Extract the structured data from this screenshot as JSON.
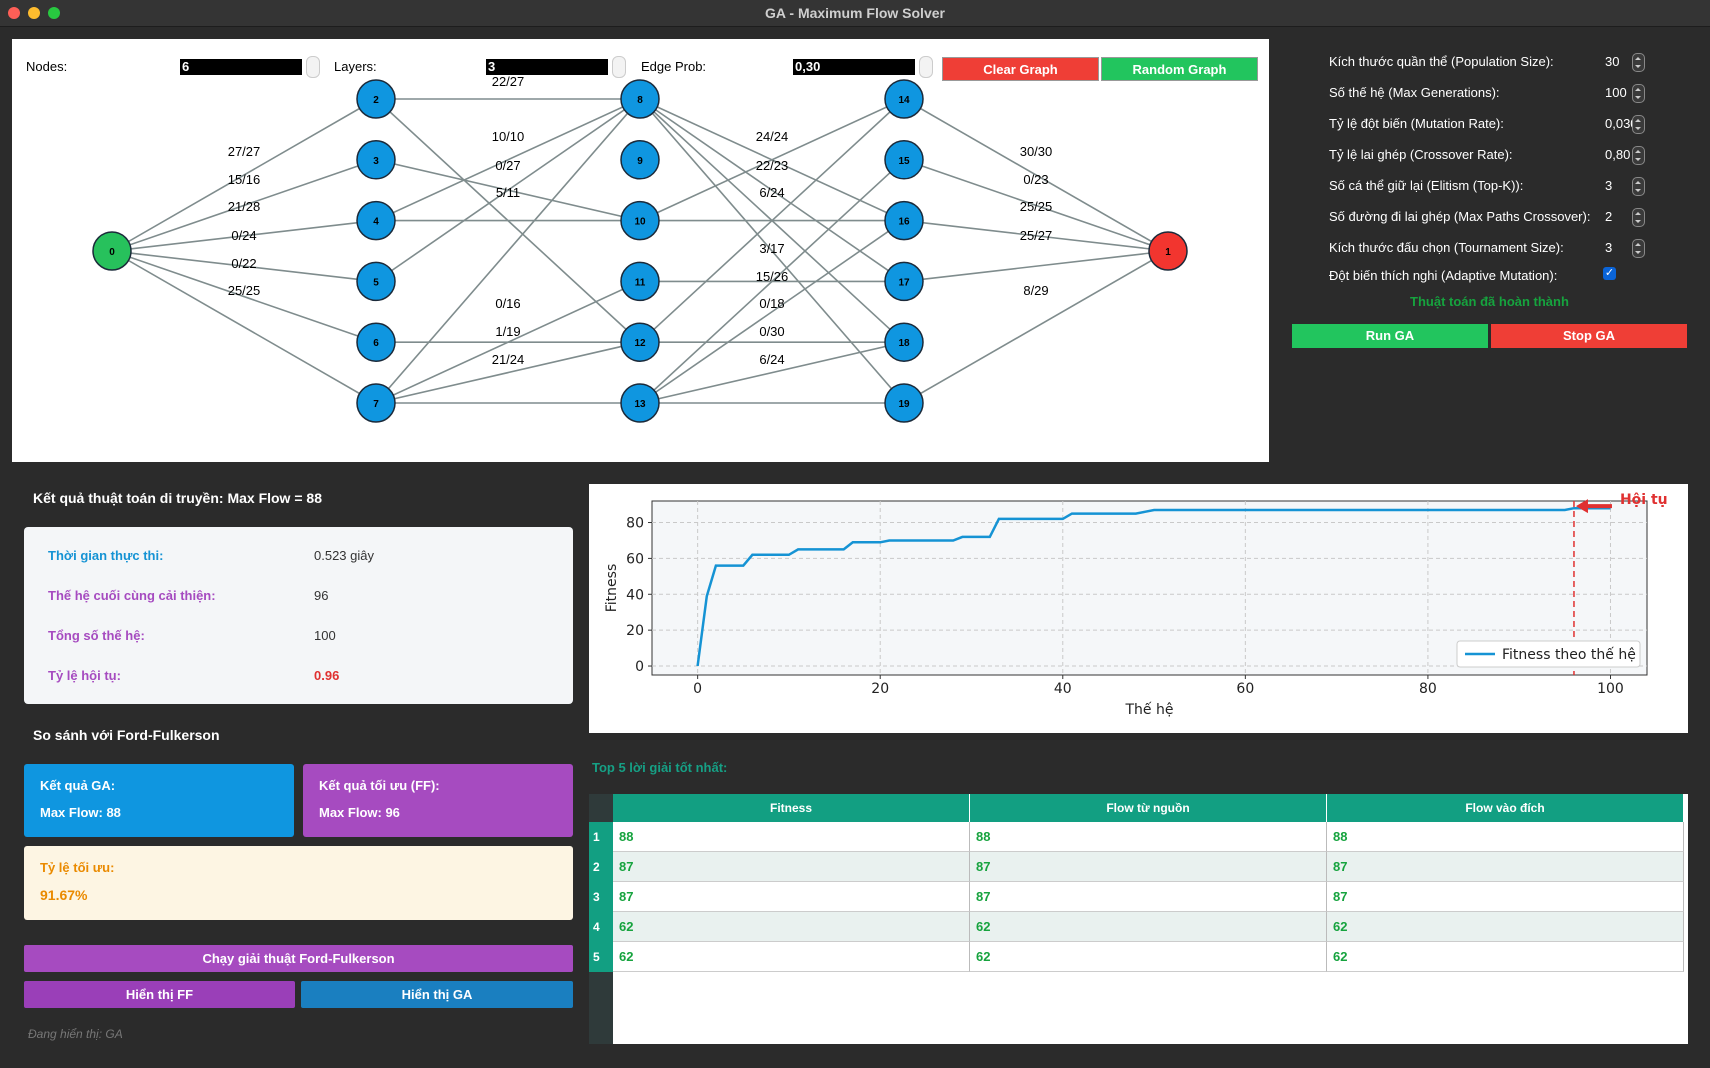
{
  "window": {
    "title": "GA - Maximum Flow Solver"
  },
  "graph_controls": {
    "nodes_label": "Nodes:",
    "nodes_value": "6",
    "layers_label": "Layers:",
    "layers_value": "3",
    "edge_prob_label": "Edge Prob:",
    "edge_prob_value": "0,30",
    "clear_label": "Clear Graph",
    "random_label": "Random Graph"
  },
  "graph": {
    "node_colors": {
      "source": "#27c15c",
      "sink": "#f2352f",
      "inner": "#0f96e0"
    },
    "nodes": [
      {
        "id": "0",
        "col": 0,
        "row": 2.5,
        "kind": "source"
      },
      {
        "id": "1",
        "col": 4,
        "row": 2.5,
        "kind": "sink"
      },
      {
        "id": "2",
        "col": 1,
        "row": 0
      },
      {
        "id": "3",
        "col": 1,
        "row": 1
      },
      {
        "id": "4",
        "col": 1,
        "row": 2
      },
      {
        "id": "5",
        "col": 1,
        "row": 3
      },
      {
        "id": "6",
        "col": 1,
        "row": 4
      },
      {
        "id": "7",
        "col": 1,
        "row": 5
      },
      {
        "id": "8",
        "col": 2,
        "row": 0
      },
      {
        "id": "9",
        "col": 2,
        "row": 1
      },
      {
        "id": "10",
        "col": 2,
        "row": 2
      },
      {
        "id": "11",
        "col": 2,
        "row": 3
      },
      {
        "id": "12",
        "col": 2,
        "row": 4
      },
      {
        "id": "13",
        "col": 2,
        "row": 5
      },
      {
        "id": "14",
        "col": 3,
        "row": 0
      },
      {
        "id": "15",
        "col": 3,
        "row": 1
      },
      {
        "id": "16",
        "col": 3,
        "row": 2
      },
      {
        "id": "17",
        "col": 3,
        "row": 3
      },
      {
        "id": "18",
        "col": 3,
        "row": 4
      },
      {
        "id": "19",
        "col": 3,
        "row": 5
      }
    ],
    "edges": [
      [
        "0",
        "2"
      ],
      [
        "0",
        "3"
      ],
      [
        "0",
        "4"
      ],
      [
        "0",
        "5"
      ],
      [
        "0",
        "6"
      ],
      [
        "0",
        "7"
      ],
      [
        "2",
        "8"
      ],
      [
        "2",
        "12"
      ],
      [
        "3",
        "10"
      ],
      [
        "4",
        "8"
      ],
      [
        "4",
        "10"
      ],
      [
        "5",
        "8"
      ],
      [
        "6",
        "12"
      ],
      [
        "7",
        "11"
      ],
      [
        "7",
        "12"
      ],
      [
        "7",
        "13"
      ],
      [
        "7",
        "8"
      ],
      [
        "8",
        "16"
      ],
      [
        "8",
        "17"
      ],
      [
        "8",
        "18"
      ],
      [
        "8",
        "19"
      ],
      [
        "10",
        "14"
      ],
      [
        "10",
        "16"
      ],
      [
        "11",
        "17"
      ],
      [
        "12",
        "14"
      ],
      [
        "12",
        "18"
      ],
      [
        "13",
        "15"
      ],
      [
        "13",
        "16"
      ],
      [
        "13",
        "18"
      ],
      [
        "13",
        "19"
      ],
      [
        "14",
        "1"
      ],
      [
        "15",
        "1"
      ],
      [
        "16",
        "1"
      ],
      [
        "17",
        "1"
      ],
      [
        "19",
        "1"
      ]
    ],
    "edge_labels": [
      {
        "t": "27/27",
        "col": 0,
        "dy": 156
      },
      {
        "t": "15/16",
        "col": 0,
        "dy": 184
      },
      {
        "t": "21/28",
        "col": 0,
        "dy": 211
      },
      {
        "t": "0/24",
        "col": 0,
        "dy": 240
      },
      {
        "t": "0/22",
        "col": 0,
        "dy": 268
      },
      {
        "t": "25/25",
        "col": 0,
        "dy": 295
      },
      {
        "t": "22/27",
        "col": 1,
        "dy": 86
      },
      {
        "t": "10/10",
        "col": 1,
        "dy": 141
      },
      {
        "t": "0/27",
        "col": 1,
        "dy": 170
      },
      {
        "t": "5/11",
        "col": 1,
        "dy": 197
      },
      {
        "t": "0/16",
        "col": 1,
        "dy": 308
      },
      {
        "t": "1/19",
        "col": 1,
        "dy": 336
      },
      {
        "t": "21/24",
        "col": 1,
        "dy": 364
      },
      {
        "t": "24/24",
        "col": 2,
        "dy": 141
      },
      {
        "t": "22/23",
        "col": 2,
        "dy": 170
      },
      {
        "t": "6/24",
        "col": 2,
        "dy": 197
      },
      {
        "t": "3/17",
        "col": 2,
        "dy": 253
      },
      {
        "t": "15/26",
        "col": 2,
        "dy": 281
      },
      {
        "t": "0/18",
        "col": 2,
        "dy": 308
      },
      {
        "t": "0/30",
        "col": 2,
        "dy": 336
      },
      {
        "t": "6/24",
        "col": 2,
        "dy": 364
      },
      {
        "t": "30/30",
        "col": 3,
        "dy": 156
      },
      {
        "t": "0/23",
        "col": 3,
        "dy": 184
      },
      {
        "t": "25/25",
        "col": 3,
        "dy": 211
      },
      {
        "t": "25/27",
        "col": 3,
        "dy": 240
      },
      {
        "t": "8/29",
        "col": 3,
        "dy": 295
      }
    ]
  },
  "params": [
    {
      "label": "Kích thước quần thể (Population Size):",
      "value": "30"
    },
    {
      "label": "Số thế hệ (Max Generations):",
      "value": "100"
    },
    {
      "label": "Tỷ lệ đột biến (Mutation Rate):",
      "value": "0,030"
    },
    {
      "label": "Tỷ lệ lai ghép (Crossover Rate):",
      "value": "0,80"
    },
    {
      "label": "Số cá thể giữ lại (Elitism (Top-K)):",
      "value": "3"
    },
    {
      "label": "Số đường đi lai ghép (Max Paths Crossover):",
      "value": "2"
    },
    {
      "label": "Kích thước đấu chọn (Tournament Size):",
      "value": "3"
    }
  ],
  "adaptive": {
    "label": "Đột biến thích nghi (Adaptive Mutation):",
    "checked": true,
    "check_glyph": "✓"
  },
  "status_text": "Thuật toán đã hoàn thành",
  "run_ga_label": "Run GA",
  "stop_ga_label": "Stop GA",
  "results": {
    "heading": "Kết quả thuật toán di truyền: Max Flow = 88",
    "rows": [
      {
        "label": "Thời gian thực thi:",
        "value": "0.523 giây",
        "color": "#1593d4"
      },
      {
        "label": "Thế hệ cuối cùng cải thiện:",
        "value": "96",
        "color": "#a64bc0"
      },
      {
        "label": "Tổng số thế hệ:",
        "value": "100",
        "color": "#a64bc0"
      },
      {
        "label": "Tỷ lệ hội tụ:",
        "value": "0.96",
        "color": "#a64bc0"
      }
    ]
  },
  "compare": {
    "heading": "So sánh với Ford-Fulkerson",
    "ga_title": "Kết quả GA:",
    "ga_value": "Max Flow: 88",
    "ff_title": "Kết quả tối ưu (FF):",
    "ff_value": "Max Flow: 96",
    "ratio_title": "Tỷ lệ tối ưu:",
    "ratio_value": "91.67%"
  },
  "buttons": {
    "run_ff": "Chạy giải thuật Ford-Fulkerson",
    "show_ff": "Hiển thị FF",
    "show_ga": "Hiển thị GA"
  },
  "showing_text": "Đang hiển thị: GA",
  "chart_data": {
    "type": "line",
    "series": [
      {
        "name": "Fitness theo thế hệ",
        "x": [
          0,
          1,
          2,
          3,
          4,
          5,
          6,
          7,
          8,
          9,
          10,
          11,
          12,
          13,
          14,
          15,
          16,
          17,
          18,
          19,
          20,
          21,
          22,
          23,
          24,
          25,
          26,
          27,
          28,
          29,
          30,
          31,
          32,
          33,
          34,
          35,
          36,
          37,
          38,
          39,
          40,
          41,
          42,
          43,
          44,
          45,
          46,
          47,
          48,
          49,
          50,
          55,
          60,
          65,
          70,
          75,
          80,
          85,
          90,
          95,
          96,
          97,
          98,
          99,
          100
        ],
        "y": [
          0,
          39,
          56,
          56,
          56,
          56,
          62,
          62,
          62,
          62,
          62,
          65,
          65,
          65,
          65,
          65,
          65,
          69,
          69,
          69,
          69,
          70,
          70,
          70,
          70,
          70,
          70,
          70,
          70,
          72,
          72,
          72,
          72,
          82,
          82,
          82,
          82,
          82,
          82,
          82,
          82,
          85,
          85,
          85,
          85,
          85,
          85,
          85,
          85,
          86,
          87,
          87,
          87,
          87,
          87,
          87,
          87,
          87,
          87,
          87,
          88,
          88,
          88,
          88,
          88
        ]
      }
    ],
    "xlabel": "Thế hệ",
    "ylabel": "Fitness",
    "xlim": [
      -5,
      104
    ],
    "ylim": [
      -5,
      92
    ],
    "xticks": [
      0,
      20,
      40,
      60,
      80,
      100
    ],
    "yticks": [
      0,
      20,
      40,
      60,
      80
    ],
    "grid": true,
    "legend": "lower-right",
    "annotation": {
      "text": "Hội tụ",
      "x": 96
    },
    "line_color": "#1593d4",
    "annotation_color": "#e03131"
  },
  "top5": {
    "title": "Top 5 lời giải tốt nhất:",
    "columns": [
      "Fitness",
      "Flow từ nguồn",
      "Flow vào đích"
    ],
    "rows": [
      [
        "1",
        "88",
        "88",
        "88"
      ],
      [
        "2",
        "87",
        "87",
        "87"
      ],
      [
        "3",
        "87",
        "87",
        "87"
      ],
      [
        "4",
        "62",
        "62",
        "62"
      ],
      [
        "5",
        "62",
        "62",
        "62"
      ]
    ]
  }
}
